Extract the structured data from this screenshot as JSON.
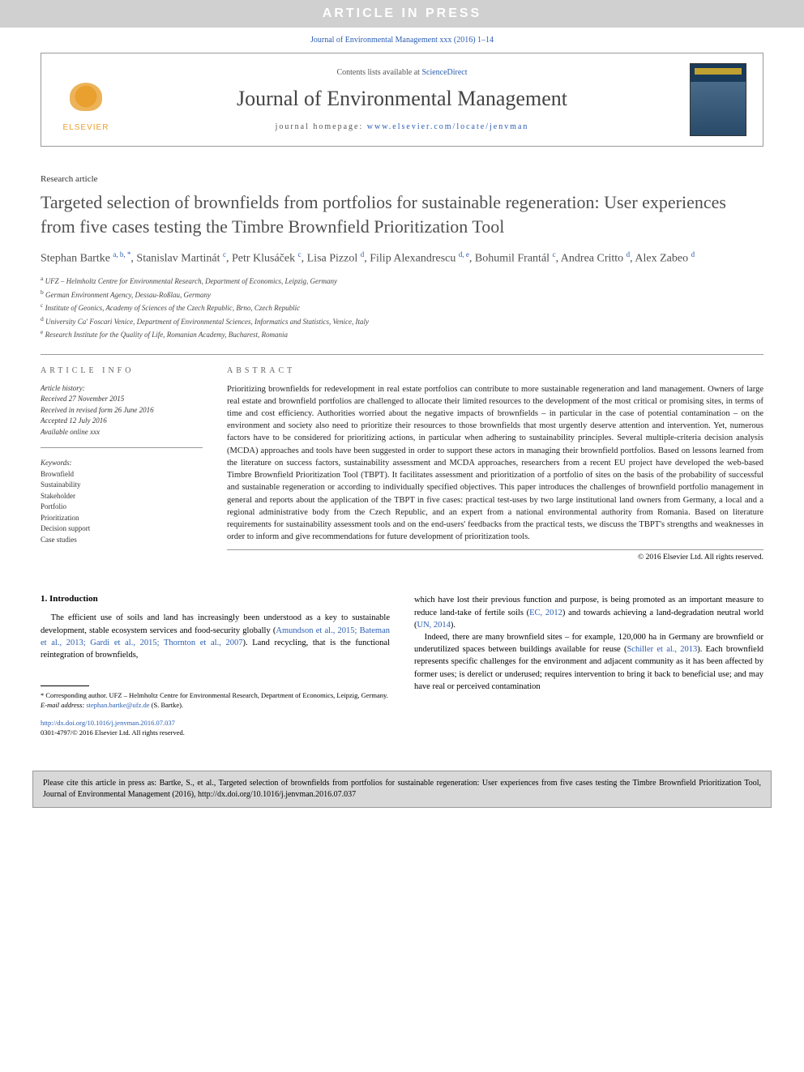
{
  "banner": "ARTICLE IN PRESS",
  "citation_top": "Journal of Environmental Management xxx (2016) 1–14",
  "header": {
    "contents_prefix": "Contents lists available at ",
    "contents_link": "ScienceDirect",
    "journal": "Journal of Environmental Management",
    "homepage_prefix": "journal homepage: ",
    "homepage_url": "www.elsevier.com/locate/jenvman",
    "publisher": "ELSEVIER"
  },
  "article_type": "Research article",
  "title": "Targeted selection of brownfields from portfolios for sustainable regeneration: User experiences from five cases testing the Timbre Brownfield Prioritization Tool",
  "authors_html": "Stephan Bartke <sup>a, b, *</sup>, Stanislav Martinát <sup>c</sup>, Petr Klusáček <sup>c</sup>, Lisa Pizzol <sup>d</sup>, Filip Alexandrescu <sup>d, e</sup>, Bohumil Frantál <sup>c</sup>, Andrea Critto <sup>d</sup>, Alex Zabeo <sup>d</sup>",
  "affiliations": [
    "UFZ – Helmholtz Centre for Environmental Research, Department of Economics, Leipzig, Germany",
    "German Environment Agency, Dessau-Roßlau, Germany",
    "Institute of Geonics, Academy of Sciences of the Czech Republic, Brno, Czech Republic",
    "University Ca' Foscari Venice, Department of Environmental Sciences, Informatics and Statistics, Venice, Italy",
    "Research Institute for the Quality of Life, Romanian Academy, Bucharest, Romania"
  ],
  "aff_markers": [
    "a",
    "b",
    "c",
    "d",
    "e"
  ],
  "info_label": "ARTICLE INFO",
  "abstract_label": "ABSTRACT",
  "history": {
    "label": "Article history:",
    "received": "Received 27 November 2015",
    "revised": "Received in revised form 26 June 2016",
    "accepted": "Accepted 12 July 2016",
    "online": "Available online xxx"
  },
  "keywords": {
    "label": "Keywords:",
    "items": [
      "Brownfield",
      "Sustainability",
      "Stakeholder",
      "Portfolio",
      "Prioritization",
      "Decision support",
      "Case studies"
    ]
  },
  "abstract": "Prioritizing brownfields for redevelopment in real estate portfolios can contribute to more sustainable regeneration and land management. Owners of large real estate and brownfield portfolios are challenged to allocate their limited resources to the development of the most critical or promising sites, in terms of time and cost efficiency. Authorities worried about the negative impacts of brownfields – in particular in the case of potential contamination – on the environment and society also need to prioritize their resources to those brownfields that most urgently deserve attention and intervention. Yet, numerous factors have to be considered for prioritizing actions, in particular when adhering to sustainability principles. Several multiple-criteria decision analysis (MCDA) approaches and tools have been suggested in order to support these actors in managing their brownfield portfolios. Based on lessons learned from the literature on success factors, sustainability assessment and MCDA approaches, researchers from a recent EU project have developed the web-based Timbre Brownfield Prioritization Tool (TBPT). It facilitates assessment and prioritization of a portfolio of sites on the basis of the probability of successful and sustainable regeneration or according to individually specified objectives. This paper introduces the challenges of brownfield portfolio management in general and reports about the application of the TBPT in five cases: practical test-uses by two large institutional land owners from Germany, a local and a regional administrative body from the Czech Republic, and an expert from a national environmental authority from Romania. Based on literature requirements for sustainability assessment tools and on the end-users' feedbacks from the practical tests, we discuss the TBPT's strengths and weaknesses in order to inform and give recommendations for future development of prioritization tools.",
  "abstract_copyright": "© 2016 Elsevier Ltd. All rights reserved.",
  "section1": {
    "heading": "1. Introduction",
    "col1_p1_pre": "The efficient use of soils and land has increasingly been understood as a key to sustainable development, stable ecosystem services and food-security globally (",
    "col1_p1_ref": "Amundson et al., 2015; Bateman et al., 2013; Gardi et al., 2015; Thornton et al., 2007",
    "col1_p1_post": "). Land recycling, that is the functional reintegration of brownfields,",
    "col2_p1_a": "which have lost their previous function and purpose, is being promoted as an important measure to reduce land-take of fertile soils (",
    "col2_p1_ref1": "EC, 2012",
    "col2_p1_b": ") and towards achieving a land-degradation neutral world (",
    "col2_p1_ref2": "UN, 2014",
    "col2_p1_c": ").",
    "col2_p2_a": "Indeed, there are many brownfield sites – for example, 120,000 ha in Germany are brownfield or underutilized spaces between buildings available for reuse (",
    "col2_p2_ref": "Schiller et al., 2013",
    "col2_p2_b": "). Each brownfield represents specific challenges for the environment and adjacent community as it has been affected by former uses; is derelict or underused; requires intervention to bring it back to beneficial use; and may have real or perceived contamination"
  },
  "footnotes": {
    "corr": "* Corresponding author. UFZ – Helmholtz Centre for Environmental Research, Department of Economics, Leipzig, Germany.",
    "email_label": "E-mail address: ",
    "email": "stephan.bartke@ufz.de",
    "email_suffix": " (S. Bartke)."
  },
  "doi": {
    "url": "http://dx.doi.org/10.1016/j.jenvman.2016.07.037",
    "issn": "0301-4797/© 2016 Elsevier Ltd. All rights reserved."
  },
  "cite_box": "Please cite this article in press as: Bartke, S., et al., Targeted selection of brownfields from portfolios for sustainable regeneration: User experiences from five cases testing the Timbre Brownfield Prioritization Tool, Journal of Environmental Management (2016), http://dx.doi.org/10.1016/j.jenvman.2016.07.037"
}
